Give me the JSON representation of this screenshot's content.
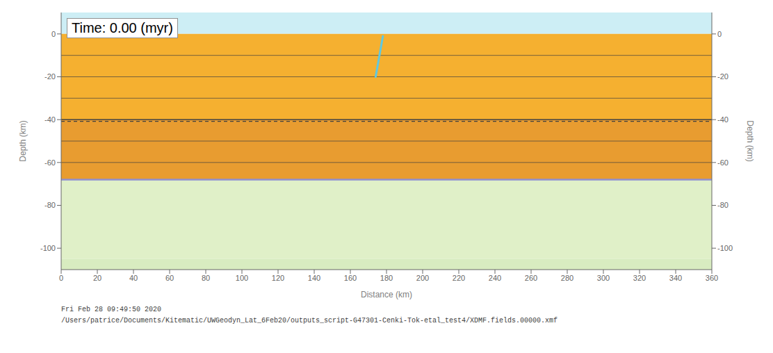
{
  "chart_data": {
    "type": "line",
    "title": "Time: 0.00 (myr)",
    "x_label": "Distance (km)",
    "y_label": "Depth (km)",
    "y2_label": "Depth (km)",
    "xlim": [
      0,
      360
    ],
    "ylim": [
      -110,
      10
    ],
    "xticks": [
      0,
      20,
      40,
      60,
      80,
      100,
      120,
      140,
      160,
      180,
      200,
      220,
      240,
      260,
      280,
      300,
      320,
      340,
      360
    ],
    "yticks": [
      0,
      -20,
      -40,
      -60,
      -80,
      -100
    ],
    "y2lim": [
      -110,
      10
    ],
    "y2ticks": [
      0,
      -20,
      -40,
      -60,
      -80,
      -100
    ],
    "bands": [
      {
        "top": 10,
        "bottom": 0,
        "color": "#cdeef5"
      },
      {
        "top": 0,
        "bottom": -40,
        "color": "#f5b030"
      },
      {
        "top": -40,
        "bottom": -68,
        "color": "#e89c30"
      },
      {
        "top": -68,
        "bottom": -105,
        "color": "#e0f0c8"
      },
      {
        "top": -105,
        "bottom": -110,
        "color": "#d8ecc0"
      }
    ],
    "hlines": [
      {
        "y": -10
      },
      {
        "y": -20
      },
      {
        "y": -30
      },
      {
        "y": -40
      },
      {
        "y": -50
      },
      {
        "y": -60
      },
      {
        "y": -40.8,
        "line_style": "dashed"
      },
      {
        "y": -40,
        "line_style": "solid"
      },
      {
        "y": -68,
        "color": "#9090d0"
      }
    ],
    "series": [
      {
        "x": [
          178,
          174
        ],
        "values": [
          -1,
          -20
        ],
        "color": "#60c8e0"
      }
    ],
    "annotations": [
      "Fri Feb 28 09:49:50 2020",
      "/Users/patrice/Documents/Kitematic/UWGeodyn_Lat_6Feb20/outputs_script-G47301-Cenki-Tok-etal_test4/XDMF.fields.00000.xmf"
    ]
  }
}
